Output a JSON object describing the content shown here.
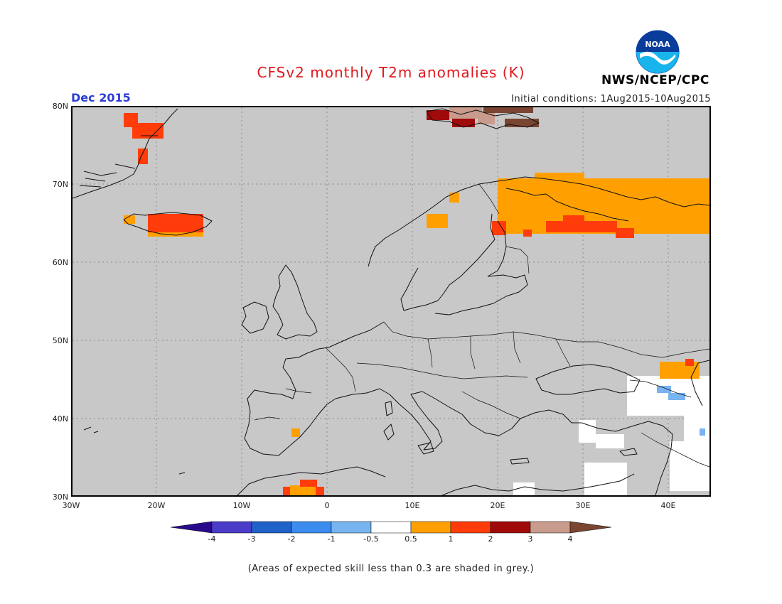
{
  "title": "CFSv2 monthly T2m anomalies (K)",
  "month_label": "Dec 2015",
  "initial_conditions": "Initial conditions: 1Aug2015-10Aug2015",
  "agency": "NWS/NCEP/CPC",
  "logo_icon": "noaa-logo-icon",
  "logo_text": "NOAA",
  "footnote": "(Areas of expected skill less than 0.3 are shaded in grey.)",
  "map": {
    "lat_labels": [
      "80N",
      "70N",
      "60N",
      "50N",
      "40N",
      "30N"
    ],
    "lon_labels": [
      "30W",
      "20W",
      "10W",
      "0",
      "10E",
      "20E",
      "30E",
      "40E"
    ],
    "background_color": "#c8c8c8"
  },
  "legend": {
    "labels": [
      "-4",
      "-3",
      "-2",
      "-1",
      "-0.5",
      "0.5",
      "1",
      "2",
      "3",
      "4"
    ],
    "colors": [
      "#2a0a8c",
      "#4a3cc8",
      "#1f62c8",
      "#3c8cf0",
      "#78b4f0",
      "#ffffff",
      "#ffa000",
      "#ff3c0a",
      "#a00a0a",
      "#c89b8c",
      "#7a4632"
    ]
  }
}
